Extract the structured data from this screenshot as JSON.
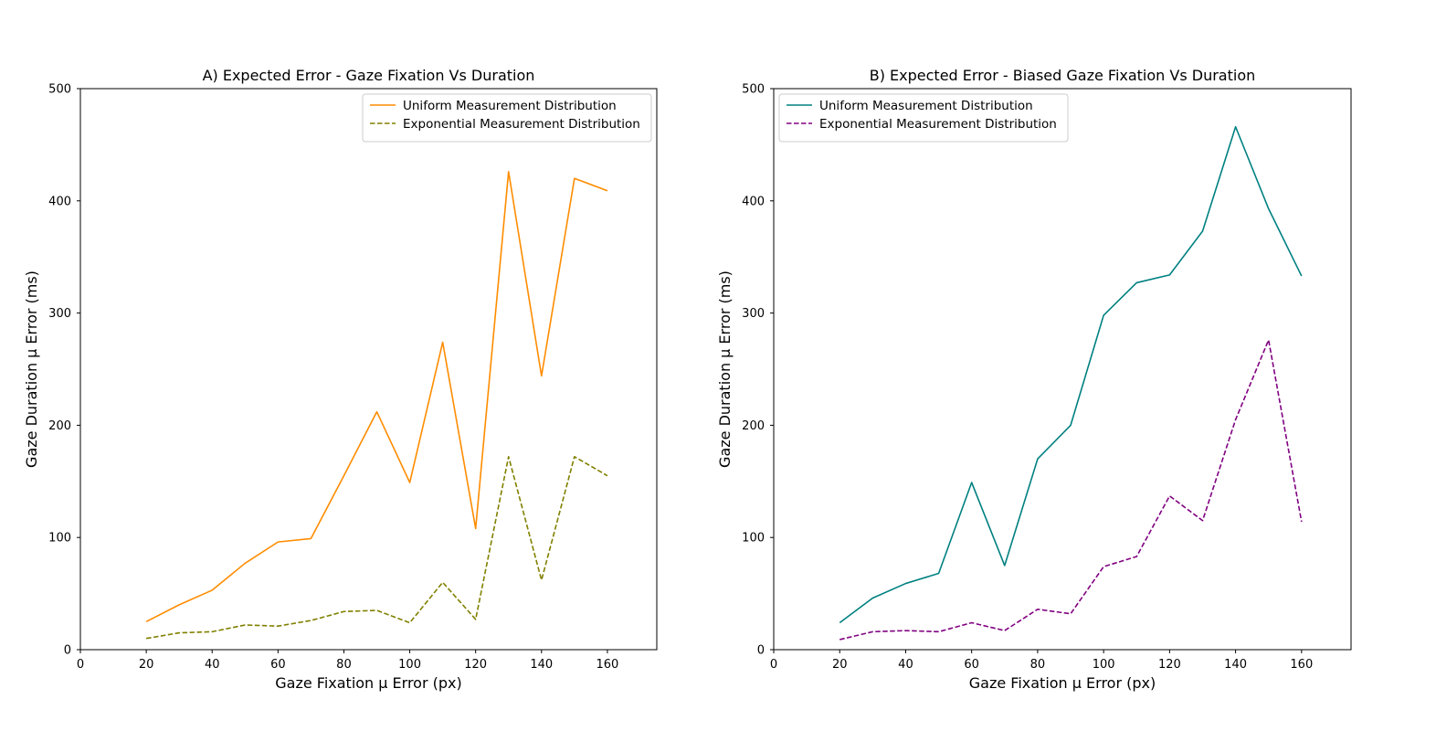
{
  "chart_data": [
    {
      "type": "line",
      "title": "A) Expected Error - Gaze Fixation Vs Duration",
      "xlabel": "Gaze Fixation μ Error (px)",
      "ylabel": "Gaze Duration μ Error (ms)",
      "xlim": [
        0,
        175
      ],
      "ylim": [
        0,
        500
      ],
      "xticks": [
        "0",
        "20",
        "40",
        "60",
        "80",
        "100",
        "120",
        "140",
        "160"
      ],
      "yticks": [
        "0",
        "100",
        "200",
        "300",
        "400",
        "500"
      ],
      "grid": false,
      "legend": "top-right",
      "x": [
        20,
        30,
        40,
        50,
        60,
        70,
        80,
        90,
        100,
        110,
        120,
        130,
        140,
        150,
        160
      ],
      "series": [
        {
          "name": "Uniform Measurement Distribution",
          "color": "#ff8c00",
          "dash": "solid",
          "values": [
            25,
            40,
            53,
            77,
            96,
            99,
            155,
            212,
            149,
            274,
            108,
            426,
            244,
            420,
            409
          ]
        },
        {
          "name": "Exponential Measurement Distribution",
          "color": "#808000",
          "dash": "dashed",
          "values": [
            10,
            15,
            16,
            22,
            21,
            26,
            34,
            35,
            24,
            60,
            27,
            172,
            62,
            172,
            155
          ]
        }
      ]
    },
    {
      "type": "line",
      "title": "B) Expected Error - Biased Gaze Fixation Vs Duration",
      "xlabel": "Gaze Fixation μ Error (px)",
      "ylabel": "Gaze Duration μ Error (ms)",
      "xlim": [
        0,
        175
      ],
      "ylim": [
        0,
        500
      ],
      "xticks": [
        "0",
        "20",
        "40",
        "60",
        "80",
        "100",
        "120",
        "140",
        "160"
      ],
      "yticks": [
        "0",
        "100",
        "200",
        "300",
        "400",
        "500"
      ],
      "grid": false,
      "legend": "top-left",
      "x": [
        20,
        30,
        40,
        50,
        60,
        70,
        80,
        90,
        100,
        110,
        120,
        130,
        140,
        150,
        160
      ],
      "series": [
        {
          "name": "Uniform Measurement Distribution",
          "color": "#008080",
          "dash": "solid",
          "values": [
            24,
            46,
            59,
            68,
            149,
            75,
            170,
            200,
            298,
            327,
            334,
            373,
            466,
            393,
            333
          ]
        },
        {
          "name": "Exponential Measurement Distribution",
          "color": "#800080",
          "dash": "dashed",
          "values": [
            9,
            16,
            17,
            16,
            24,
            17,
            36,
            32,
            74,
            83,
            137,
            115,
            205,
            276,
            114
          ]
        }
      ]
    }
  ]
}
